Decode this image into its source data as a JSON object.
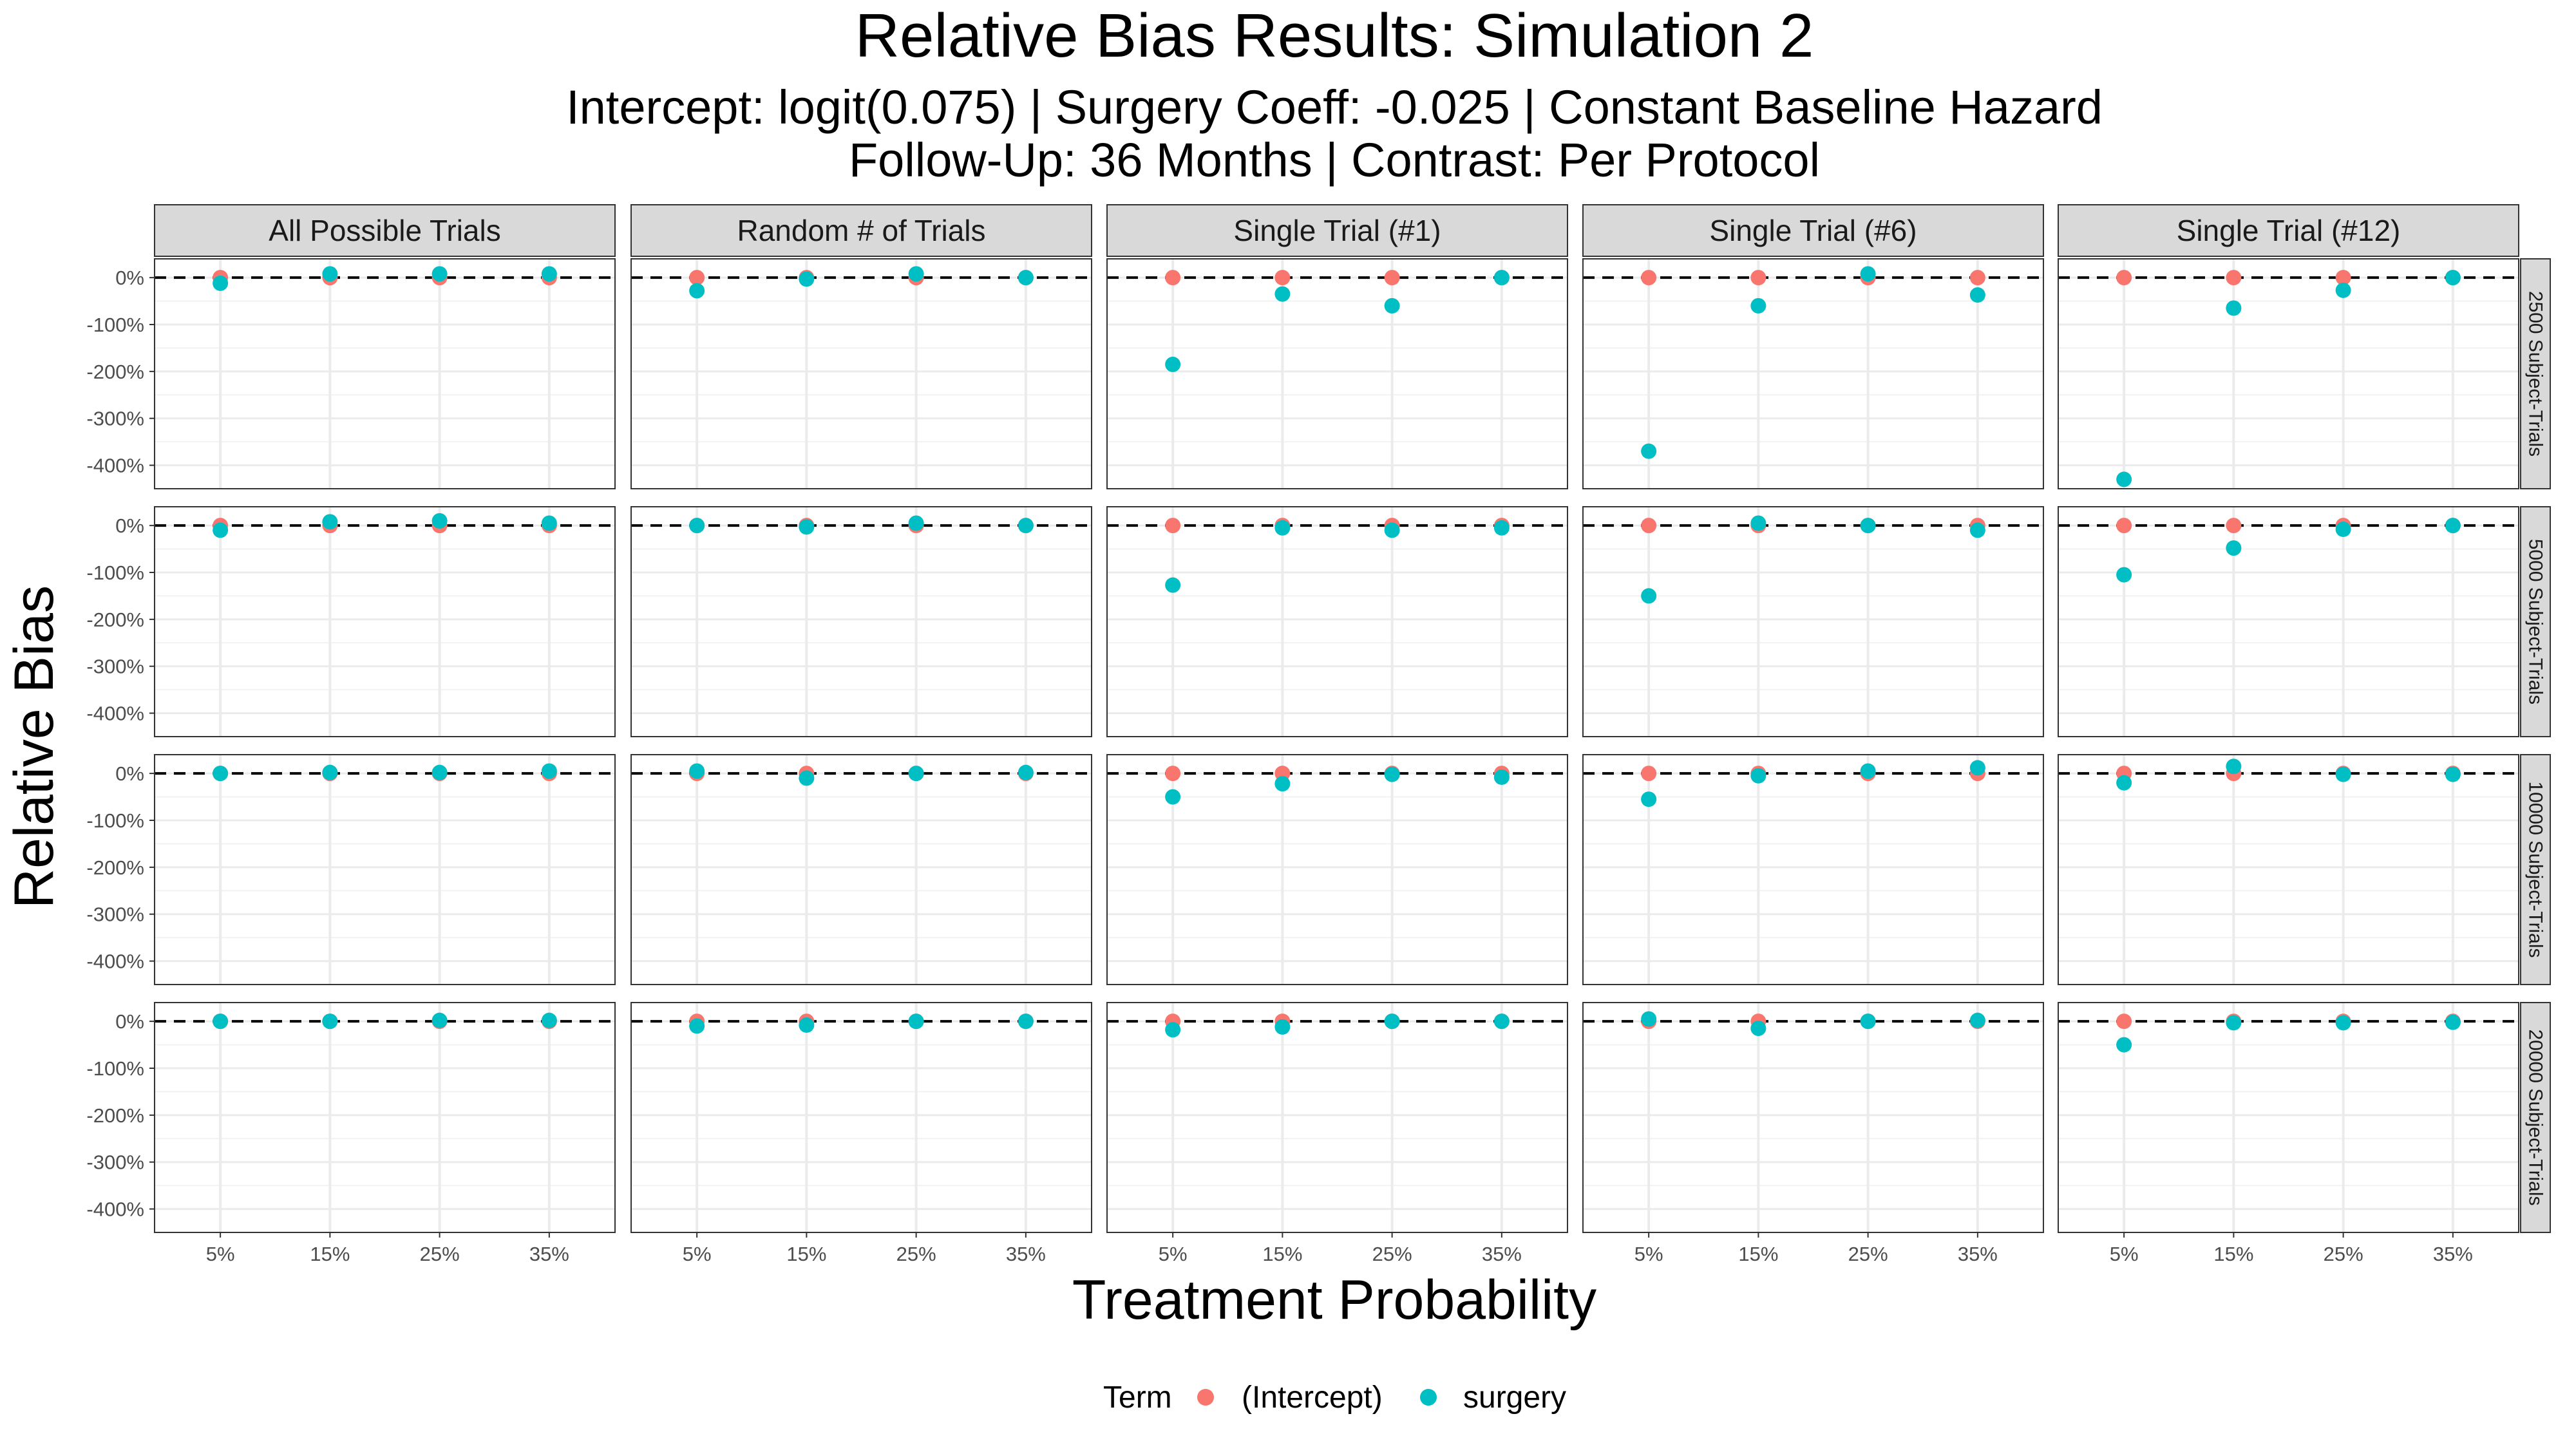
{
  "chart_data": {
    "type": "scatter",
    "title": "Relative Bias Results: Simulation 2",
    "subtitle_lines": [
      "Intercept: logit(0.075) | Surgery Coeff: -0.025 | Constant Baseline Hazard",
      "Follow-Up: 36 Months | Contrast: Per Protocol"
    ],
    "xlabel": "Treatment Probability",
    "ylabel": "Relative Bias",
    "x_categories": [
      "5%",
      "15%",
      "25%",
      "35%"
    ],
    "y_ticks": [
      0,
      -100,
      -200,
      -300,
      -400
    ],
    "y_tick_labels": [
      "0%",
      "-100%",
      "-200%",
      "-300%",
      "-400%"
    ],
    "ylim": [
      -450,
      40
    ],
    "reference_line": 0,
    "column_facets": [
      "All Possible Trials",
      "Random # of Trials",
      "Single Trial (#1)",
      "Single Trial (#6)",
      "Single Trial (#12)"
    ],
    "row_facets": [
      "2500 Subject-Trials",
      "5000 Subject-Trials",
      "10000 Subject-Trials",
      "20000 Subject-Trials"
    ],
    "legend": {
      "title": "Term",
      "position": "bottom"
    },
    "series": [
      {
        "name": "(Intercept)",
        "color": "#F8766D",
        "values": [
          [
            [
              0,
              0,
              0,
              0
            ],
            [
              0,
              0,
              0,
              0
            ],
            [
              0,
              0,
              0,
              0
            ],
            [
              0,
              0,
              0,
              0
            ],
            [
              0,
              0,
              0,
              0
            ]
          ],
          [
            [
              0,
              0,
              0,
              0
            ],
            [
              0,
              0,
              0,
              0
            ],
            [
              0,
              0,
              0,
              0
            ],
            [
              0,
              0,
              0,
              0
            ],
            [
              0,
              0,
              0,
              0
            ]
          ],
          [
            [
              0,
              0,
              0,
              0
            ],
            [
              0,
              0,
              0,
              0
            ],
            [
              0,
              0,
              0,
              0
            ],
            [
              0,
              0,
              0,
              0
            ],
            [
              0,
              0,
              0,
              0
            ]
          ],
          [
            [
              0,
              0,
              0,
              0
            ],
            [
              0,
              0,
              0,
              0
            ],
            [
              0,
              0,
              0,
              0
            ],
            [
              0,
              0,
              0,
              0
            ],
            [
              0,
              0,
              0,
              0
            ]
          ]
        ]
      },
      {
        "name": "surgery",
        "color": "#00BFC4",
        "values": [
          [
            [
              -12,
              8,
              8,
              8
            ],
            [
              -28,
              -3,
              8,
              0
            ],
            [
              -185,
              -35,
              -60,
              0
            ],
            [
              -370,
              -60,
              8,
              -37
            ],
            [
              -430,
              -65,
              -27,
              0
            ]
          ],
          [
            [
              -10,
              8,
              10,
              5
            ],
            [
              0,
              -3,
              5,
              0
            ],
            [
              -127,
              -5,
              -10,
              -5
            ],
            [
              -150,
              5,
              0,
              -10
            ],
            [
              -105,
              -48,
              -8,
              0
            ]
          ],
          [
            [
              0,
              2,
              2,
              5
            ],
            [
              5,
              -10,
              0,
              2
            ],
            [
              -50,
              -22,
              -2,
              -8
            ],
            [
              -55,
              -5,
              5,
              12
            ],
            [
              -20,
              15,
              -2,
              -2
            ]
          ],
          [
            [
              0,
              0,
              2,
              2
            ],
            [
              -10,
              -8,
              0,
              0
            ],
            [
              -18,
              -12,
              0,
              0
            ],
            [
              5,
              -15,
              0,
              2
            ],
            [
              -50,
              -3,
              -3,
              -2
            ]
          ]
        ]
      }
    ]
  }
}
